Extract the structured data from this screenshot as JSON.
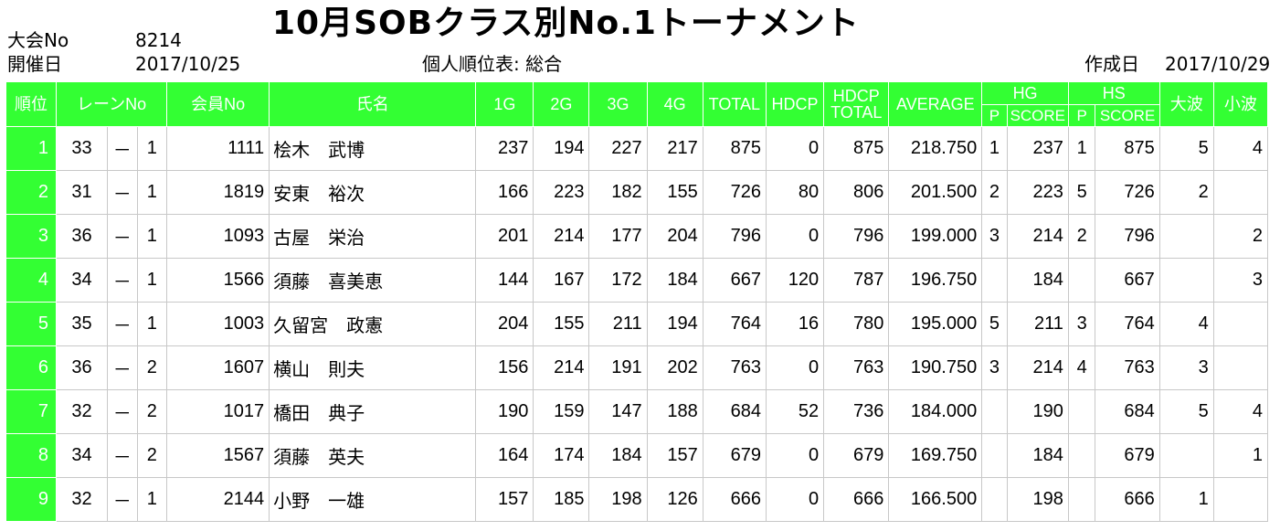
{
  "title": "10月SOBクラス別No.1トーナメント",
  "meta": {
    "tournament_label": "大会No",
    "tournament_no": "8214",
    "date_label": "開催日",
    "date": "2017/10/25",
    "report_label": "個人順位表: 総合",
    "created_label": "作成日",
    "created_date": "2017/10/29"
  },
  "headers": {
    "rank": "順位",
    "lane": "レーンNo",
    "member": "会員No",
    "name": "氏名",
    "g1": "1G",
    "g2": "2G",
    "g3": "3G",
    "g4": "4G",
    "total": "TOTAL",
    "hdcp": "HDCP",
    "hdcp_total_1": "HDCP",
    "hdcp_total_2": "TOTAL",
    "average": "AVERAGE",
    "hg": "HG",
    "hs": "HS",
    "p": "P",
    "score": "SCORE",
    "big": "大波",
    "small": "小波"
  },
  "rows": [
    {
      "rank": "1",
      "lane": "33",
      "dash": "－",
      "lane_sub": "1",
      "member": "1111",
      "name": "桧木　武博",
      "g1": "237",
      "g2": "194",
      "g3": "227",
      "g4": "217",
      "total": "875",
      "hdcp": "0",
      "hdcp_total": "875",
      "average": "218.750",
      "hg_p": "1",
      "hg_score": "237",
      "hs_p": "1",
      "hs_score": "875",
      "big": "5",
      "small": "4"
    },
    {
      "rank": "2",
      "lane": "31",
      "dash": "－",
      "lane_sub": "1",
      "member": "1819",
      "name": "安東　裕次",
      "g1": "166",
      "g2": "223",
      "g3": "182",
      "g4": "155",
      "total": "726",
      "hdcp": "80",
      "hdcp_total": "806",
      "average": "201.500",
      "hg_p": "2",
      "hg_score": "223",
      "hs_p": "5",
      "hs_score": "726",
      "big": "2",
      "small": ""
    },
    {
      "rank": "3",
      "lane": "36",
      "dash": "－",
      "lane_sub": "1",
      "member": "1093",
      "name": "古屋　栄治",
      "g1": "201",
      "g2": "214",
      "g3": "177",
      "g4": "204",
      "total": "796",
      "hdcp": "0",
      "hdcp_total": "796",
      "average": "199.000",
      "hg_p": "3",
      "hg_score": "214",
      "hs_p": "2",
      "hs_score": "796",
      "big": "",
      "small": "2"
    },
    {
      "rank": "4",
      "lane": "34",
      "dash": "－",
      "lane_sub": "1",
      "member": "1566",
      "name": "須藤　喜美恵",
      "g1": "144",
      "g2": "167",
      "g3": "172",
      "g4": "184",
      "total": "667",
      "hdcp": "120",
      "hdcp_total": "787",
      "average": "196.750",
      "hg_p": "",
      "hg_score": "184",
      "hs_p": "",
      "hs_score": "667",
      "big": "",
      "small": "3"
    },
    {
      "rank": "5",
      "lane": "35",
      "dash": "－",
      "lane_sub": "1",
      "member": "1003",
      "name": "久留宮　政憲",
      "g1": "204",
      "g2": "155",
      "g3": "211",
      "g4": "194",
      "total": "764",
      "hdcp": "16",
      "hdcp_total": "780",
      "average": "195.000",
      "hg_p": "5",
      "hg_score": "211",
      "hs_p": "3",
      "hs_score": "764",
      "big": "4",
      "small": ""
    },
    {
      "rank": "6",
      "lane": "36",
      "dash": "－",
      "lane_sub": "2",
      "member": "1607",
      "name": "横山　則夫",
      "g1": "156",
      "g2": "214",
      "g3": "191",
      "g4": "202",
      "total": "763",
      "hdcp": "0",
      "hdcp_total": "763",
      "average": "190.750",
      "hg_p": "3",
      "hg_score": "214",
      "hs_p": "4",
      "hs_score": "763",
      "big": "3",
      "small": ""
    },
    {
      "rank": "7",
      "lane": "32",
      "dash": "－",
      "lane_sub": "2",
      "member": "1017",
      "name": "橋田　典子",
      "g1": "190",
      "g2": "159",
      "g3": "147",
      "g4": "188",
      "total": "684",
      "hdcp": "52",
      "hdcp_total": "736",
      "average": "184.000",
      "hg_p": "",
      "hg_score": "190",
      "hs_p": "",
      "hs_score": "684",
      "big": "5",
      "small": "4"
    },
    {
      "rank": "8",
      "lane": "34",
      "dash": "－",
      "lane_sub": "2",
      "member": "1567",
      "name": "須藤　英夫",
      "g1": "164",
      "g2": "174",
      "g3": "184",
      "g4": "157",
      "total": "679",
      "hdcp": "0",
      "hdcp_total": "679",
      "average": "169.750",
      "hg_p": "",
      "hg_score": "184",
      "hs_p": "",
      "hs_score": "679",
      "big": "",
      "small": "1"
    },
    {
      "rank": "9",
      "lane": "32",
      "dash": "－",
      "lane_sub": "1",
      "member": "2144",
      "name": "小野　一雄",
      "g1": "157",
      "g2": "185",
      "g3": "198",
      "g4": "126",
      "total": "666",
      "hdcp": "0",
      "hdcp_total": "666",
      "average": "166.500",
      "hg_p": "",
      "hg_score": "198",
      "hs_p": "",
      "hs_score": "666",
      "big": "1",
      "small": ""
    }
  ]
}
